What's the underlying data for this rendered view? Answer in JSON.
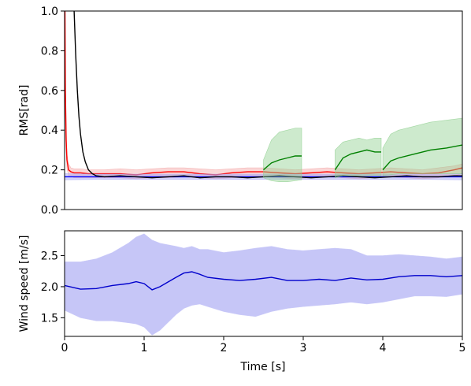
{
  "chart_data": [
    {
      "type": "line",
      "title": "",
      "xlabel": "",
      "ylabel": "RMS[rad]",
      "xlim": [
        0,
        5
      ],
      "ylim": [
        0,
        1.0
      ],
      "yticks": [
        0.0,
        0.2,
        0.4,
        0.6,
        0.8,
        1.0
      ],
      "ytick_labels": [
        "0.0",
        "0.2",
        "0.4",
        "0.6",
        "0.8",
        "1.0"
      ],
      "grid": false,
      "legend": "none",
      "series": [
        {
          "color": "#ff0000",
          "band_color": "#f4a6a6",
          "band_opacity": 0.45,
          "x": [
            0,
            0.005,
            0.01,
            0.02,
            0.03,
            0.05,
            0.08,
            0.12,
            0.2,
            0.3,
            0.5,
            0.7,
            0.9,
            1.1,
            1.3,
            1.5,
            1.7,
            1.9,
            2.1,
            2.3,
            2.5,
            2.7,
            2.9,
            3.1,
            3.3,
            3.5,
            3.7,
            3.9,
            4.1,
            4.3,
            4.5,
            4.7,
            4.9,
            5.0
          ],
          "y": [
            1.0,
            1.0,
            0.6,
            0.35,
            0.25,
            0.2,
            0.19,
            0.185,
            0.185,
            0.18,
            0.18,
            0.18,
            0.175,
            0.185,
            0.19,
            0.19,
            0.18,
            0.175,
            0.185,
            0.19,
            0.19,
            0.185,
            0.18,
            0.185,
            0.19,
            0.185,
            0.18,
            0.185,
            0.19,
            0.185,
            0.18,
            0.185,
            0.2,
            0.21
          ],
          "y_low": [
            1.0,
            0.95,
            0.5,
            0.3,
            0.21,
            0.17,
            0.17,
            0.16,
            0.16,
            0.16,
            0.16,
            0.16,
            0.155,
            0.16,
            0.16,
            0.165,
            0.16,
            0.155,
            0.16,
            0.165,
            0.165,
            0.16,
            0.155,
            0.16,
            0.165,
            0.16,
            0.155,
            0.16,
            0.165,
            0.16,
            0.155,
            0.16,
            0.17,
            0.18
          ],
          "y_high": [
            1.0,
            1.0,
            0.7,
            0.4,
            0.28,
            0.23,
            0.21,
            0.205,
            0.205,
            0.2,
            0.2,
            0.205,
            0.2,
            0.205,
            0.21,
            0.21,
            0.205,
            0.2,
            0.205,
            0.21,
            0.21,
            0.205,
            0.2,
            0.205,
            0.21,
            0.205,
            0.2,
            0.205,
            0.21,
            0.205,
            0.2,
            0.21,
            0.22,
            0.23
          ]
        },
        {
          "color": "#0000ff",
          "band_color": "#a9a9f5",
          "band_opacity": 0.5,
          "x": [
            0,
            0.5,
            1.0,
            1.5,
            2.0,
            2.5,
            3.0,
            3.5,
            4.0,
            4.5,
            5.0
          ],
          "y": [
            0.165,
            0.165,
            0.165,
            0.165,
            0.165,
            0.165,
            0.165,
            0.165,
            0.165,
            0.165,
            0.165
          ],
          "y_low": [
            0.15,
            0.152,
            0.152,
            0.152,
            0.152,
            0.152,
            0.152,
            0.152,
            0.152,
            0.152,
            0.15
          ],
          "y_high": [
            0.18,
            0.178,
            0.178,
            0.178,
            0.178,
            0.178,
            0.178,
            0.178,
            0.178,
            0.178,
            0.18
          ]
        },
        {
          "color": "#000000",
          "x": [
            0.12,
            0.14,
            0.16,
            0.18,
            0.2,
            0.23,
            0.26,
            0.3,
            0.35,
            0.4,
            0.5,
            0.7,
            0.9,
            1.1,
            1.3,
            1.5,
            1.7,
            1.9,
            2.1,
            2.3,
            2.5,
            2.7,
            2.9,
            3.1,
            3.3,
            3.5,
            3.7,
            3.9,
            4.1,
            4.3,
            4.5,
            4.7,
            4.9,
            5.0
          ],
          "y": [
            1.0,
            0.78,
            0.6,
            0.47,
            0.38,
            0.29,
            0.24,
            0.2,
            0.18,
            0.17,
            0.165,
            0.17,
            0.165,
            0.16,
            0.165,
            0.17,
            0.16,
            0.165,
            0.165,
            0.16,
            0.165,
            0.17,
            0.165,
            0.16,
            0.165,
            0.17,
            0.165,
            0.16,
            0.165,
            0.17,
            0.165,
            0.165,
            0.17,
            0.17
          ]
        },
        {
          "color": "#008000",
          "band_color": "#90d090",
          "band_opacity": 0.45,
          "segments": [
            {
              "x": [
                2.5,
                2.6,
                2.7,
                2.8,
                2.9,
                2.98
              ],
              "y": [
                0.2,
                0.235,
                0.25,
                0.26,
                0.27,
                0.27
              ],
              "y_low": [
                0.16,
                0.145,
                0.14,
                0.14,
                0.145,
                0.15
              ],
              "y_high": [
                0.25,
                0.35,
                0.39,
                0.4,
                0.41,
                0.41
              ]
            },
            {
              "x": [
                3.4,
                3.5,
                3.6,
                3.7,
                3.8,
                3.9,
                3.98
              ],
              "y": [
                0.2,
                0.26,
                0.28,
                0.29,
                0.3,
                0.29,
                0.29
              ],
              "y_low": [
                0.16,
                0.17,
                0.17,
                0.17,
                0.17,
                0.17,
                0.17
              ],
              "y_high": [
                0.3,
                0.34,
                0.35,
                0.36,
                0.35,
                0.36,
                0.36
              ]
            },
            {
              "x": [
                4.0,
                4.1,
                4.2,
                4.4,
                4.6,
                4.8,
                5.0
              ],
              "y": [
                0.2,
                0.245,
                0.26,
                0.28,
                0.3,
                0.31,
                0.325
              ],
              "y_low": [
                0.17,
                0.175,
                0.18,
                0.18,
                0.18,
                0.18,
                0.18
              ],
              "y_high": [
                0.31,
                0.38,
                0.4,
                0.42,
                0.44,
                0.45,
                0.46
              ]
            }
          ]
        }
      ]
    },
    {
      "type": "line",
      "title": "",
      "xlabel": "Time [s]",
      "ylabel": "Wind speed [m/s]",
      "xlim": [
        0,
        5
      ],
      "ylim": [
        1.2,
        2.9
      ],
      "xticks": [
        0,
        1,
        2,
        3,
        4,
        5
      ],
      "xtick_labels": [
        "0",
        "1",
        "2",
        "3",
        "4",
        "5"
      ],
      "yticks": [
        1.5,
        2.0,
        2.5
      ],
      "ytick_labels": [
        "1.5",
        "2.0",
        "2.5"
      ],
      "grid": false,
      "legend": "none",
      "series": [
        {
          "color": "#0000cc",
          "band_color": "#c6c6f7",
          "band_opacity": 1,
          "x": [
            0,
            0.2,
            0.4,
            0.6,
            0.8,
            0.9,
            1.0,
            1.1,
            1.2,
            1.4,
            1.5,
            1.6,
            1.7,
            1.8,
            2.0,
            2.2,
            2.4,
            2.6,
            2.8,
            3.0,
            3.2,
            3.4,
            3.6,
            3.8,
            4.0,
            4.2,
            4.4,
            4.6,
            4.8,
            5.0
          ],
          "y": [
            2.02,
            1.96,
            1.97,
            2.02,
            2.05,
            2.08,
            2.05,
            1.95,
            2.0,
            2.15,
            2.22,
            2.24,
            2.2,
            2.15,
            2.12,
            2.1,
            2.12,
            2.15,
            2.1,
            2.1,
            2.12,
            2.1,
            2.14,
            2.11,
            2.12,
            2.16,
            2.18,
            2.18,
            2.16,
            2.18
          ],
          "y_low": [
            1.62,
            1.5,
            1.45,
            1.45,
            1.42,
            1.4,
            1.35,
            1.22,
            1.3,
            1.55,
            1.65,
            1.7,
            1.72,
            1.68,
            1.6,
            1.55,
            1.52,
            1.6,
            1.65,
            1.68,
            1.7,
            1.72,
            1.75,
            1.72,
            1.75,
            1.8,
            1.85,
            1.85,
            1.84,
            1.88
          ],
          "y_high": [
            2.4,
            2.4,
            2.45,
            2.55,
            2.7,
            2.8,
            2.85,
            2.75,
            2.7,
            2.65,
            2.62,
            2.65,
            2.6,
            2.6,
            2.55,
            2.58,
            2.62,
            2.65,
            2.6,
            2.58,
            2.6,
            2.62,
            2.6,
            2.5,
            2.5,
            2.52,
            2.5,
            2.48,
            2.45,
            2.48
          ]
        }
      ]
    }
  ]
}
